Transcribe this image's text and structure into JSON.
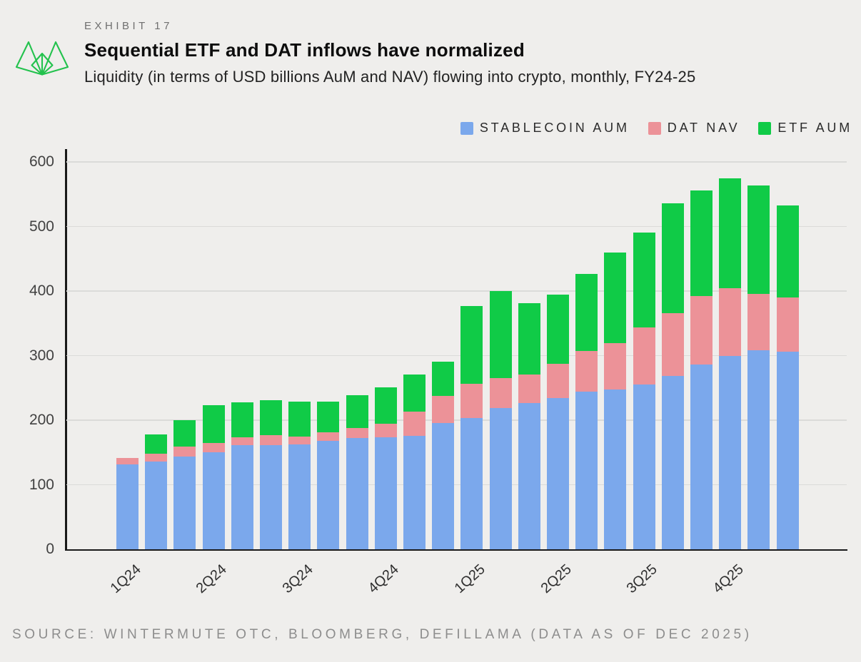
{
  "header": {
    "exhibit_label": "EXHIBIT 17",
    "title": "Sequential ETF and DAT inflows have normalized",
    "subtitle": "Liquidity (in terms of USD billions AuM and NAV) flowing into crypto, monthly, FY24-25"
  },
  "colors": {
    "background": "#efeeec",
    "stablecoin_blue": "#7ba8ec",
    "dat_pink": "#ec9298",
    "etf_green": "#10cb47",
    "logo_green": "#23c24d",
    "gridline": "#dbdbd9",
    "axis": "#191919"
  },
  "legend": {
    "items": [
      {
        "label": "STABLECOIN AUM",
        "color": "#7ba8ec"
      },
      {
        "label": "DAT NAV",
        "color": "#ec9298"
      },
      {
        "label": "ETF AUM",
        "color": "#10cb47"
      }
    ],
    "position": "top-right"
  },
  "chart_data": {
    "type": "bar",
    "stacked": true,
    "unit": "USD billions",
    "title": "Sequential ETF and DAT inflows have normalized",
    "subtitle": "Liquidity (in terms of USD billions AuM and NAV) flowing into crypto, monthly, FY24-25",
    "x": [
      "2024-01",
      "2024-02",
      "2024-03",
      "2024-04",
      "2024-05",
      "2024-06",
      "2024-07",
      "2024-08",
      "2024-09",
      "2024-10",
      "2024-11",
      "2024-12",
      "2025-01",
      "2025-02",
      "2025-03",
      "2025-04",
      "2025-05",
      "2025-06",
      "2025-07",
      "2025-08",
      "2025-09",
      "2025-10",
      "2025-11",
      "2025-12"
    ],
    "x_tick_labels": [
      "1Q24",
      "2Q24",
      "3Q24",
      "4Q24",
      "1Q25",
      "2Q25",
      "3Q25",
      "4Q25"
    ],
    "x_tick_bar_indices": [
      0,
      3,
      6,
      9,
      12,
      15,
      18,
      21
    ],
    "series": [
      {
        "name": "STABLECOIN AUM",
        "color": "#7ba8ec",
        "values": [
          132,
          136,
          144,
          150,
          161,
          161,
          162,
          168,
          172,
          174,
          176,
          196,
          203,
          219,
          227,
          234,
          244,
          248,
          255,
          269,
          286,
          299,
          308,
          306
        ]
      },
      {
        "name": "DAT NAV",
        "color": "#ec9298",
        "values": [
          9,
          12,
          15,
          15,
          13,
          16,
          13,
          13,
          16,
          20,
          37,
          42,
          53,
          46,
          44,
          53,
          63,
          71,
          89,
          97,
          106,
          105,
          88,
          84
        ]
      },
      {
        "name": "ETF AUM",
        "color": "#10cb47",
        "values": [
          0,
          30,
          41,
          58,
          54,
          54,
          54,
          48,
          51,
          57,
          58,
          53,
          121,
          135,
          110,
          108,
          120,
          141,
          147,
          170,
          164,
          171,
          168,
          143
        ]
      }
    ],
    "stack_totals": [
      141,
      178,
      200,
      223,
      228,
      231,
      229,
      229,
      239,
      251,
      271,
      291,
      377,
      400,
      381,
      395,
      427,
      460,
      491,
      536,
      556,
      575,
      564,
      533
    ],
    "ylim": [
      0,
      600
    ],
    "yticks": [
      0,
      100,
      200,
      300,
      400,
      500,
      600
    ],
    "grid": true,
    "legend_position": "top-right"
  },
  "source": {
    "text": "SOURCE: WINTERMUTE OTC, BLOOMBERG, DEFILLAMA (DATA AS OF DEC 2025)"
  }
}
